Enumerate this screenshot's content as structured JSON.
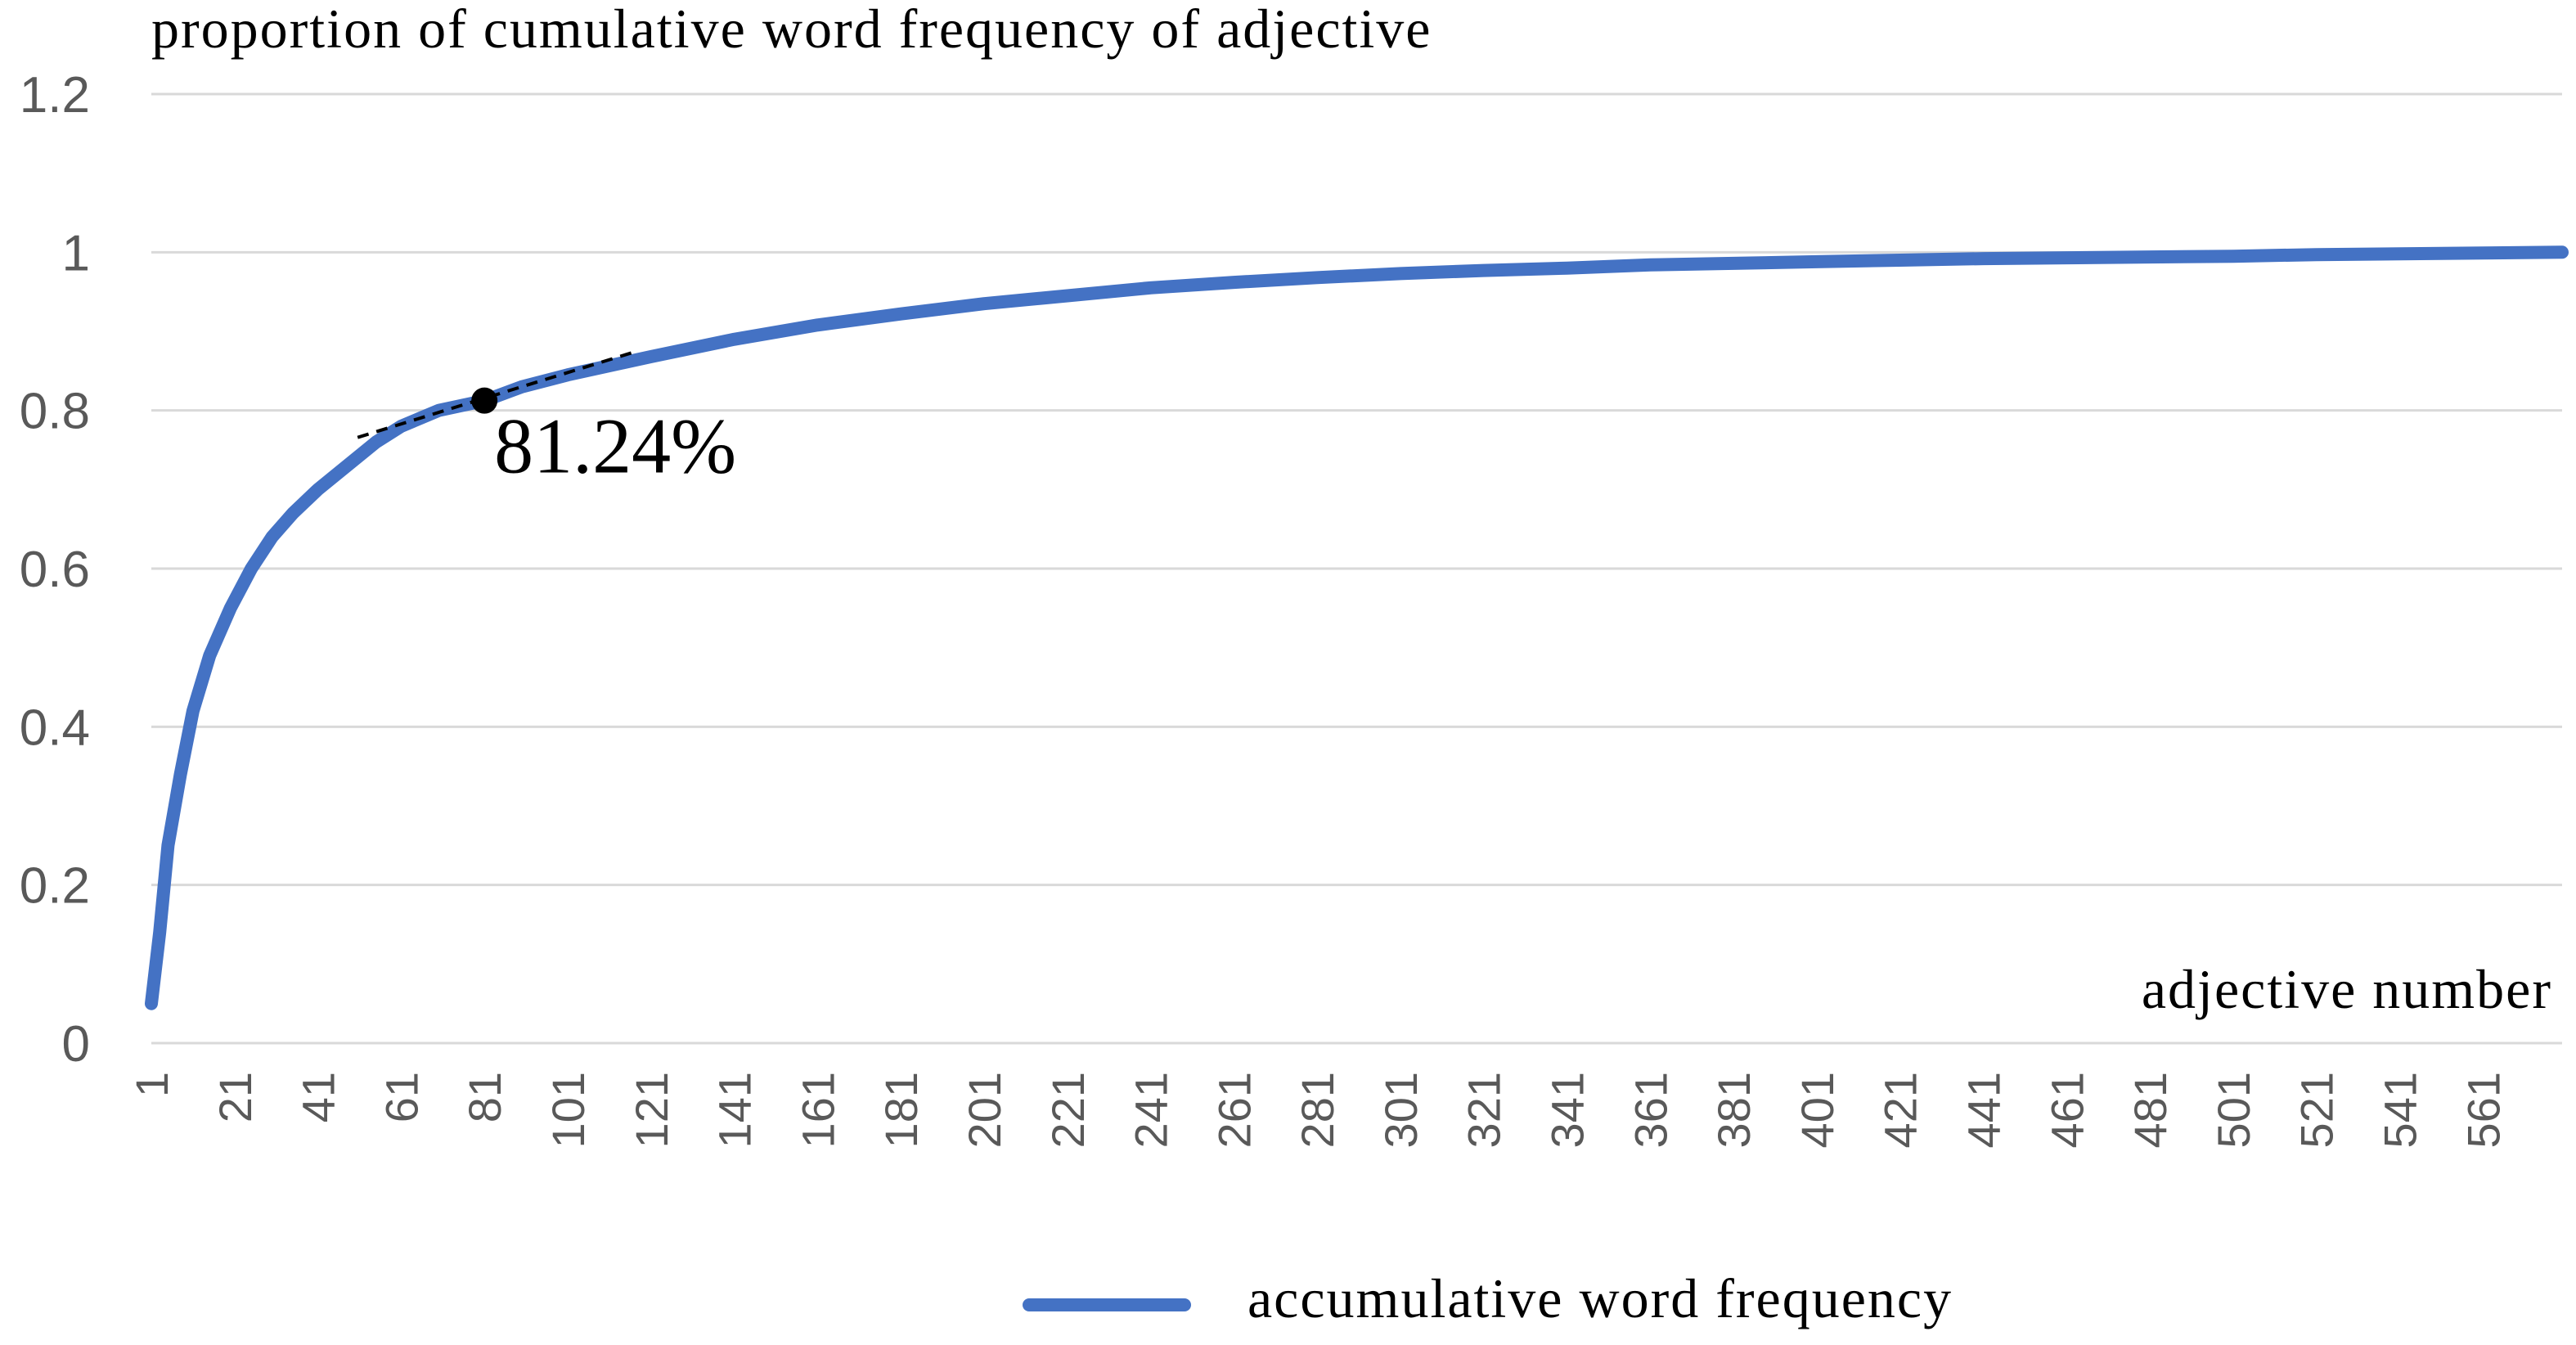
{
  "chart_data": {
    "type": "line",
    "title": "proportion of cumulative word frequency of adjective",
    "xlabel": "adjective number",
    "ylabel": "",
    "ylim": [
      0,
      1.2
    ],
    "yticks": [
      0,
      0.2,
      0.4,
      0.6,
      0.8,
      1,
      1.2
    ],
    "ytick_labels": [
      "0",
      "0.2",
      "0.4",
      "0.6",
      "0.8",
      "1",
      "1.2"
    ],
    "xlim": [
      1,
      580
    ],
    "xtick_labels": [
      "1",
      "21",
      "41",
      "61",
      "81",
      "101",
      "121",
      "141",
      "161",
      "181",
      "201",
      "221",
      "241",
      "261",
      "281",
      "301",
      "321",
      "341",
      "361",
      "381",
      "401",
      "421",
      "441",
      "461",
      "481",
      "501",
      "521",
      "541",
      "561"
    ],
    "grid": true,
    "legend_position": "bottom",
    "series": [
      {
        "name": "accumulative word frequency",
        "color": "#4472C4",
        "x": [
          1,
          3,
          5,
          8,
          11,
          15,
          20,
          25,
          30,
          35,
          41,
          48,
          55,
          61,
          70,
          81,
          90,
          101,
          121,
          141,
          161,
          181,
          201,
          221,
          241,
          261,
          281,
          301,
          321,
          341,
          361,
          381,
          401,
          421,
          441,
          461,
          481,
          501,
          521,
          541,
          561,
          580
        ],
        "y": [
          0.05,
          0.14,
          0.25,
          0.34,
          0.42,
          0.49,
          0.55,
          0.6,
          0.64,
          0.67,
          0.7,
          0.73,
          0.76,
          0.78,
          0.8,
          0.8124,
          0.83,
          0.845,
          0.868,
          0.89,
          0.908,
          0.922,
          0.935,
          0.945,
          0.955,
          0.962,
          0.968,
          0.973,
          0.977,
          0.98,
          0.984,
          0.986,
          0.988,
          0.99,
          0.992,
          0.993,
          0.994,
          0.995,
          0.997,
          0.998,
          0.999,
          1.0
        ]
      }
    ],
    "annotations": [
      {
        "text": "81.24%",
        "x": 81,
        "y": 0.8124
      }
    ]
  }
}
